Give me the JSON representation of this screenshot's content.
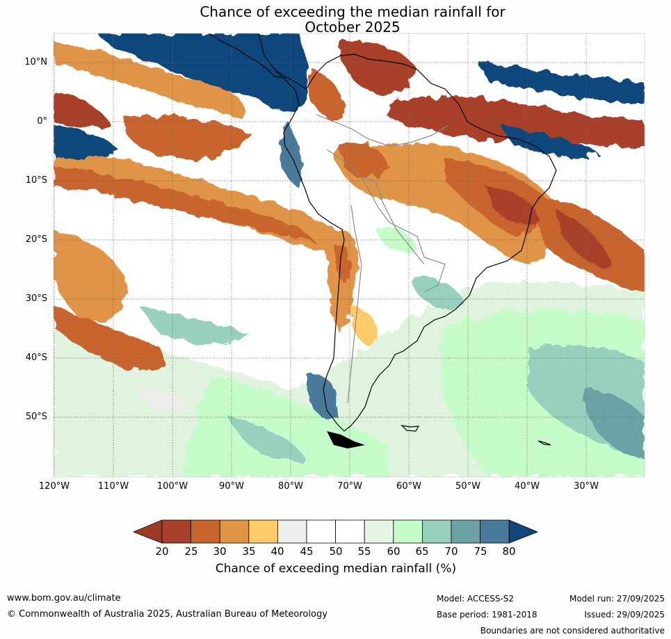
{
  "title": {
    "line1": "Chance of exceeding the median rainfall for",
    "line2": "October 2025"
  },
  "lat_labels": [
    "10°N",
    "0°",
    "10°S",
    "20°S",
    "30°S",
    "40°S",
    "50°S"
  ],
  "lon_labels": [
    "120°W",
    "110°W",
    "100°W",
    "90°W",
    "80°W",
    "70°W",
    "60°W",
    "50°W",
    "40°W",
    "30°W"
  ],
  "colorbar": {
    "ticks": [
      "20",
      "25",
      "30",
      "35",
      "40",
      "45",
      "50",
      "55",
      "60",
      "65",
      "70",
      "75",
      "80"
    ],
    "colors": [
      "#a9402b",
      "#c8652e",
      "#e09446",
      "#fdcb6a",
      "#ededea",
      "#ffffff",
      "#ffffff",
      "#e8f5e6",
      "#c6fcca",
      "#98d0be",
      "#6aa3a6",
      "#487a99",
      "#10467c"
    ],
    "under_color": "#9b3a27",
    "over_color": "#10467c",
    "label": "Chance of exceeding median rainfall (%)"
  },
  "footer": {
    "website": "www.bom.gov.au/climate",
    "copyright": "© Commonwealth of Australia 2025, Australian Bureau of Meteorology",
    "model": "Model: ACCESS-S2",
    "base_period": "Base period: 1981-2018",
    "model_run": "Model run: 27/09/2025",
    "issued": "Issued: 29/09/2025",
    "disclaimer": "Boundaries are not considered authoritative"
  }
}
